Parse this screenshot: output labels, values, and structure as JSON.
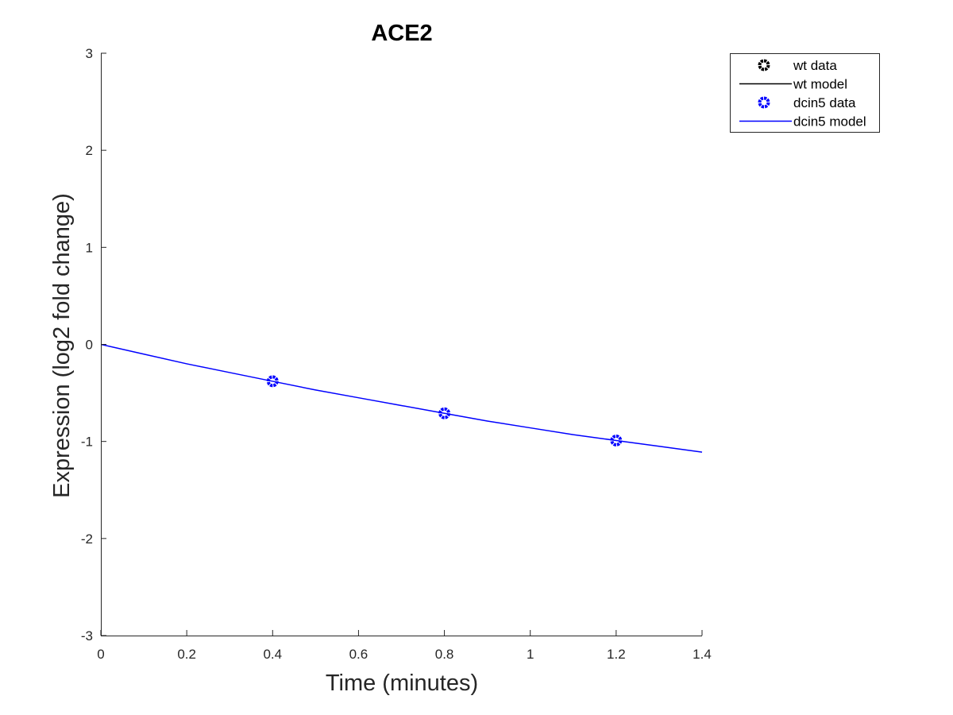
{
  "chart_data": {
    "type": "line",
    "title": "ACE2",
    "xlabel": "Time (minutes)",
    "ylabel": "Expression (log2 fold change)",
    "xlim": [
      0,
      1.4
    ],
    "ylim": [
      -3,
      3
    ],
    "xticks": [
      0,
      0.2,
      0.4,
      0.6,
      0.8,
      1,
      1.2,
      1.4
    ],
    "xtick_labels": [
      "0",
      "0.2",
      "0.4",
      "0.6",
      "0.8",
      "1",
      "1.2",
      "1.4"
    ],
    "yticks": [
      3,
      2,
      1,
      0,
      -1,
      -2,
      -3
    ],
    "ytick_labels": [
      "3",
      "2",
      "1",
      "0",
      "-1",
      "-2",
      "-3"
    ],
    "grid": false,
    "legend_position": "top-right",
    "series": [
      {
        "name": "wt data",
        "kind": "markers",
        "color": "#000000",
        "x": [],
        "y": []
      },
      {
        "name": "wt model",
        "kind": "line",
        "color": "#000000",
        "x": [],
        "y": []
      },
      {
        "name": "dcin5 data",
        "kind": "markers",
        "color": "#0000ff",
        "x": [
          0.4,
          0.8,
          1.2
        ],
        "y": [
          -0.38,
          -0.71,
          -0.99
        ]
      },
      {
        "name": "dcin5 model",
        "kind": "line",
        "color": "#0000ff",
        "x": [
          0,
          0.1,
          0.2,
          0.3,
          0.4,
          0.5,
          0.6,
          0.7,
          0.8,
          0.9,
          1.0,
          1.1,
          1.2,
          1.3,
          1.4
        ],
        "y": [
          0,
          -0.1,
          -0.2,
          -0.29,
          -0.38,
          -0.47,
          -0.55,
          -0.63,
          -0.71,
          -0.79,
          -0.86,
          -0.93,
          -0.99,
          -1.05,
          -1.11
        ]
      }
    ]
  }
}
